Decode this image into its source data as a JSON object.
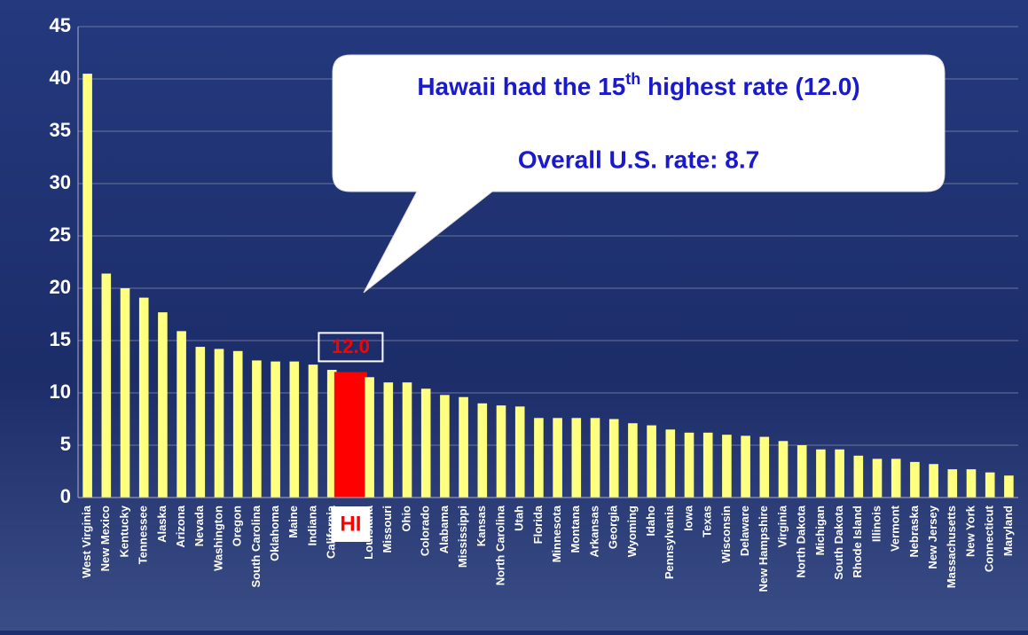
{
  "chart_data": {
    "type": "bar",
    "categories": [
      "West Virginia",
      "New Mexico",
      "Kentucky",
      "Tennessee",
      "Alaska",
      "Arizona",
      "Nevada",
      "Washington",
      "Oregon",
      "South Carolina",
      "Oklahoma",
      "Maine",
      "Indiana",
      "California",
      "HI",
      "Louisiana",
      "Missouri",
      "Ohio",
      "Colorado",
      "Alabama",
      "Mississippi",
      "Kansas",
      "North Carolina",
      "Utah",
      "Florida",
      "Minnesota",
      "Montana",
      "Arkansas",
      "Georgia",
      "Wyoming",
      "Idaho",
      "Pennsylvania",
      "Iowa",
      "Texas",
      "Wisconsin",
      "Delaware",
      "New Hampshire",
      "Virginia",
      "North Dakota",
      "Michigan",
      "South Dakota",
      "Rhode Island",
      "Illinois",
      "Vermont",
      "Nebraska",
      "New Jersey",
      "Massachusetts",
      "New York",
      "Connecticut",
      "Maryland"
    ],
    "values": [
      40.5,
      21.4,
      20.0,
      19.1,
      17.7,
      15.9,
      14.4,
      14.2,
      14.0,
      13.1,
      13.0,
      13.0,
      12.7,
      12.2,
      12.0,
      11.5,
      11.0,
      11.0,
      10.4,
      9.8,
      9.6,
      9.0,
      8.8,
      8.7,
      7.6,
      7.6,
      7.6,
      7.6,
      7.5,
      7.1,
      6.9,
      6.5,
      6.2,
      6.2,
      6.0,
      5.9,
      5.8,
      5.4,
      5.0,
      4.6,
      4.6,
      4.0,
      3.7,
      3.7,
      3.4,
      3.2,
      2.7,
      2.7,
      2.4,
      2.1
    ],
    "value_labels": [
      null,
      null,
      null,
      null,
      null,
      null,
      null,
      null,
      null,
      null,
      null,
      null,
      null,
      null,
      "12.0",
      null,
      null,
      null,
      null,
      null,
      null,
      null,
      null,
      null,
      null,
      null,
      null,
      null,
      null,
      null,
      null,
      null,
      null,
      null,
      null,
      null,
      null,
      null,
      null,
      null,
      null,
      null,
      null,
      null,
      null,
      null,
      null,
      null,
      null,
      null
    ],
    "color": "#ffff80",
    "highlight_color": "#ff0000",
    "ylim": [
      0,
      45
    ],
    "yticks": [
      0,
      5,
      10,
      15,
      20,
      25,
      30,
      35,
      40,
      45
    ],
    "grid": true,
    "callout": {
      "line1_pre": "Hawaii had the 15",
      "line1_sup": "th",
      "line1_post": " highest rate (12.0)",
      "line2": "Overall U.S. rate: 8.7"
    }
  }
}
